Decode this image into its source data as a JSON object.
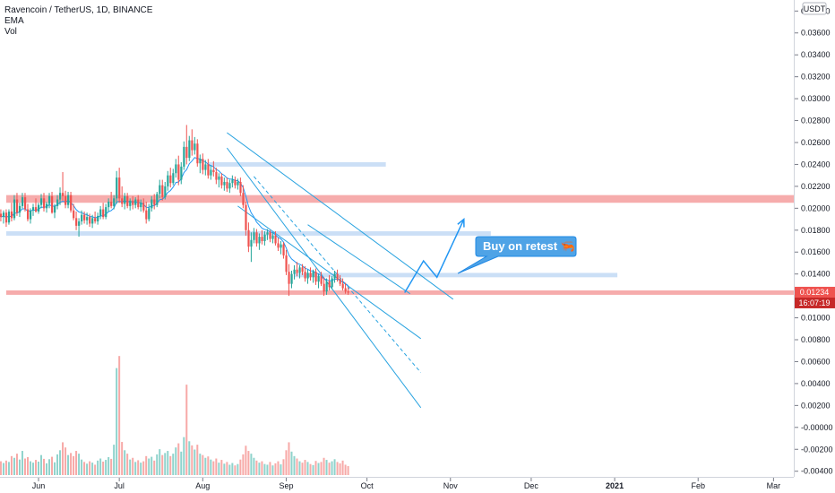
{
  "legend": {
    "title": "Ravencoin / TetherUS, 1D, BINANCE",
    "indicator_1": "EMA",
    "indicator_2": "Vol"
  },
  "currency_badge": "USDT",
  "current_price_tag": "0.01234",
  "countdown_tag": "16:07:19",
  "callout": {
    "text": "Buy on retest",
    "emoji": "🦐"
  },
  "colors": {
    "up": "#26a69a",
    "down": "#ef5350",
    "ema": "#2196f3",
    "zone_red": "#f5a3a3",
    "zone_blue": "#c2d9f5",
    "callout_bg": "#4fa3e6",
    "callout_border": "#1e88e5",
    "price_tag_bg": "#ef5350",
    "countdown_tag_bg": "#c62828",
    "axis_text": "#131722"
  },
  "chart_data": {
    "type": "candlestick",
    "symbol": "Ravencoin / TetherUS",
    "interval": "1D",
    "exchange": "BINANCE",
    "y_axis": {
      "ticks": [
        "0.03800",
        "0.03600",
        "0.03400",
        "0.03200",
        "0.03000",
        "0.02800",
        "0.02600",
        "0.02400",
        "0.02200",
        "0.02000",
        "0.01800",
        "0.01600",
        "0.01400",
        "0.01200",
        "0.01000",
        "0.00800",
        "0.00600",
        "0.00400",
        "0.00200",
        "-0.00000",
        "-0.00200",
        "-0.00400"
      ],
      "range": [
        -0.0043,
        0.0391
      ]
    },
    "x_axis": {
      "ticks": [
        {
          "label": "Jun",
          "day": 0
        },
        {
          "label": "Jul",
          "day": 30
        },
        {
          "label": "Aug",
          "day": 61
        },
        {
          "label": "Sep",
          "day": 92
        },
        {
          "label": "Oct",
          "day": 122
        },
        {
          "label": "Nov",
          "day": 153
        },
        {
          "label": "Dec",
          "day": 183
        },
        {
          "label": "2021",
          "day": 214
        },
        {
          "label": "Feb",
          "day": 245
        },
        {
          "label": "Mar",
          "day": 273
        }
      ]
    },
    "zones": [
      {
        "color": "red",
        "top": 0.0212,
        "bottom": 0.0205,
        "from_day": -12,
        "to_day": 284
      },
      {
        "color": "blue",
        "top": 0.0179,
        "bottom": 0.0175,
        "from_day": -12,
        "to_day": 168
      },
      {
        "color": "blue",
        "top": 0.0242,
        "bottom": 0.0238,
        "from_day": 63,
        "to_day": 129
      },
      {
        "color": "blue",
        "top": 0.0141,
        "bottom": 0.0137,
        "from_day": 95,
        "to_day": 215
      },
      {
        "color": "red",
        "top": 0.0125,
        "bottom": 0.0121,
        "from_day": -12,
        "to_day": 284
      }
    ],
    "trend_lines": [
      {
        "from": {
          "day": 70,
          "price": 0.0269
        },
        "to": {
          "day": 154,
          "price": 0.0117
        },
        "style": "solid"
      },
      {
        "from": {
          "day": 74,
          "price": 0.0202
        },
        "to": {
          "day": 142,
          "price": 0.0081
        },
        "style": "solid"
      },
      {
        "from": {
          "day": 80,
          "price": 0.0229
        },
        "to": {
          "day": 142,
          "price": 0.005
        },
        "style": "dashed"
      },
      {
        "from": {
          "day": 70,
          "price": 0.0255
        },
        "to": {
          "day": 142,
          "price": 0.0018
        },
        "style": "solid"
      },
      {
        "from": {
          "day": 100,
          "price": 0.0185
        },
        "to": {
          "day": 138,
          "price": 0.0122
        },
        "style": "solid"
      }
    ],
    "projection_path": [
      {
        "day": 136,
        "price": 0.0123
      },
      {
        "day": 143,
        "price": 0.0152
      },
      {
        "day": 148,
        "price": 0.0137
      },
      {
        "day": 158,
        "price": 0.019
      }
    ],
    "candles": [
      {
        "o": 0.0195,
        "h": 0.0199,
        "l": 0.0188,
        "c": 0.0192,
        "v": 40
      },
      {
        "o": 0.0192,
        "h": 0.0198,
        "l": 0.0186,
        "c": 0.0196,
        "v": 35
      },
      {
        "o": 0.0196,
        "h": 0.0199,
        "l": 0.0183,
        "c": 0.0187,
        "v": 42
      },
      {
        "o": 0.0187,
        "h": 0.0199,
        "l": 0.0185,
        "c": 0.0197,
        "v": 38
      },
      {
        "o": 0.0197,
        "h": 0.0205,
        "l": 0.0188,
        "c": 0.0191,
        "v": 55
      },
      {
        "o": 0.0191,
        "h": 0.0212,
        "l": 0.0189,
        "c": 0.0208,
        "v": 50
      },
      {
        "o": 0.0208,
        "h": 0.0214,
        "l": 0.0193,
        "c": 0.0196,
        "v": 62
      },
      {
        "o": 0.0196,
        "h": 0.0205,
        "l": 0.0192,
        "c": 0.0202,
        "v": 45
      },
      {
        "o": 0.0202,
        "h": 0.0214,
        "l": 0.02,
        "c": 0.021,
        "v": 70
      },
      {
        "o": 0.021,
        "h": 0.0214,
        "l": 0.0197,
        "c": 0.0199,
        "v": 48
      },
      {
        "o": 0.0199,
        "h": 0.0204,
        "l": 0.0188,
        "c": 0.019,
        "v": 52
      },
      {
        "o": 0.019,
        "h": 0.02,
        "l": 0.0186,
        "c": 0.0198,
        "v": 40
      },
      {
        "o": 0.0198,
        "h": 0.0204,
        "l": 0.0193,
        "c": 0.0201,
        "v": 36
      },
      {
        "o": 0.0201,
        "h": 0.0209,
        "l": 0.0196,
        "c": 0.0197,
        "v": 44
      },
      {
        "o": 0.0197,
        "h": 0.0205,
        "l": 0.0195,
        "c": 0.0203,
        "v": 39
      },
      {
        "o": 0.0203,
        "h": 0.0213,
        "l": 0.02,
        "c": 0.0209,
        "v": 58
      },
      {
        "o": 0.0209,
        "h": 0.0214,
        "l": 0.0197,
        "c": 0.02,
        "v": 47
      },
      {
        "o": 0.02,
        "h": 0.0206,
        "l": 0.0196,
        "c": 0.0204,
        "v": 34
      },
      {
        "o": 0.0204,
        "h": 0.0214,
        "l": 0.02,
        "c": 0.0211,
        "v": 46
      },
      {
        "o": 0.0211,
        "h": 0.0215,
        "l": 0.0195,
        "c": 0.0196,
        "v": 53
      },
      {
        "o": 0.0196,
        "h": 0.0204,
        "l": 0.0191,
        "c": 0.0202,
        "v": 37
      },
      {
        "o": 0.0202,
        "h": 0.0212,
        "l": 0.0199,
        "c": 0.0208,
        "v": 60
      },
      {
        "o": 0.0208,
        "h": 0.0219,
        "l": 0.0203,
        "c": 0.0214,
        "v": 72
      },
      {
        "o": 0.0214,
        "h": 0.0233,
        "l": 0.0207,
        "c": 0.0211,
        "v": 95
      },
      {
        "o": 0.0211,
        "h": 0.0216,
        "l": 0.02,
        "c": 0.0203,
        "v": 80
      },
      {
        "o": 0.0203,
        "h": 0.0215,
        "l": 0.02,
        "c": 0.0212,
        "v": 58
      },
      {
        "o": 0.0212,
        "h": 0.0215,
        "l": 0.0196,
        "c": 0.0198,
        "v": 64
      },
      {
        "o": 0.0198,
        "h": 0.0204,
        "l": 0.0189,
        "c": 0.0191,
        "v": 55
      },
      {
        "o": 0.0191,
        "h": 0.0197,
        "l": 0.018,
        "c": 0.0184,
        "v": 70
      },
      {
        "o": 0.0184,
        "h": 0.0191,
        "l": 0.0174,
        "c": 0.0188,
        "v": 62
      },
      {
        "o": 0.0188,
        "h": 0.0198,
        "l": 0.0185,
        "c": 0.0194,
        "v": 45
      },
      {
        "o": 0.0194,
        "h": 0.0197,
        "l": 0.0186,
        "c": 0.0189,
        "v": 38
      },
      {
        "o": 0.0189,
        "h": 0.0196,
        "l": 0.0185,
        "c": 0.0192,
        "v": 33
      },
      {
        "o": 0.0192,
        "h": 0.0195,
        "l": 0.0183,
        "c": 0.0186,
        "v": 40
      },
      {
        "o": 0.0186,
        "h": 0.0194,
        "l": 0.0182,
        "c": 0.0191,
        "v": 36
      },
      {
        "o": 0.0191,
        "h": 0.0197,
        "l": 0.0186,
        "c": 0.0188,
        "v": 30
      },
      {
        "o": 0.0188,
        "h": 0.0196,
        "l": 0.0185,
        "c": 0.0193,
        "v": 42
      },
      {
        "o": 0.0193,
        "h": 0.0202,
        "l": 0.019,
        "c": 0.0199,
        "v": 48
      },
      {
        "o": 0.0199,
        "h": 0.0205,
        "l": 0.019,
        "c": 0.0192,
        "v": 39
      },
      {
        "o": 0.0192,
        "h": 0.0204,
        "l": 0.019,
        "c": 0.0201,
        "v": 44
      },
      {
        "o": 0.0201,
        "h": 0.0209,
        "l": 0.0197,
        "c": 0.0206,
        "v": 52
      },
      {
        "o": 0.0206,
        "h": 0.0215,
        "l": 0.02,
        "c": 0.0202,
        "v": 47
      },
      {
        "o": 0.0202,
        "h": 0.0212,
        "l": 0.0199,
        "c": 0.0209,
        "v": 88
      },
      {
        "o": 0.0209,
        "h": 0.0234,
        "l": 0.0204,
        "c": 0.0228,
        "v": 310
      },
      {
        "o": 0.0228,
        "h": 0.0237,
        "l": 0.0205,
        "c": 0.0209,
        "v": 345
      },
      {
        "o": 0.0209,
        "h": 0.022,
        "l": 0.0201,
        "c": 0.0204,
        "v": 96
      },
      {
        "o": 0.0204,
        "h": 0.0214,
        "l": 0.0199,
        "c": 0.0211,
        "v": 72
      },
      {
        "o": 0.0211,
        "h": 0.0214,
        "l": 0.02,
        "c": 0.0202,
        "v": 62
      },
      {
        "o": 0.0202,
        "h": 0.0209,
        "l": 0.0198,
        "c": 0.0207,
        "v": 45
      },
      {
        "o": 0.0207,
        "h": 0.0211,
        "l": 0.0199,
        "c": 0.0203,
        "v": 50
      },
      {
        "o": 0.0203,
        "h": 0.021,
        "l": 0.02,
        "c": 0.0208,
        "v": 38
      },
      {
        "o": 0.0208,
        "h": 0.0212,
        "l": 0.0199,
        "c": 0.0201,
        "v": 43
      },
      {
        "o": 0.0201,
        "h": 0.0208,
        "l": 0.0197,
        "c": 0.0205,
        "v": 36
      },
      {
        "o": 0.0205,
        "h": 0.0209,
        "l": 0.0196,
        "c": 0.0198,
        "v": 40
      },
      {
        "o": 0.0198,
        "h": 0.0206,
        "l": 0.0186,
        "c": 0.019,
        "v": 55
      },
      {
        "o": 0.019,
        "h": 0.0204,
        "l": 0.0188,
        "c": 0.02,
        "v": 48
      },
      {
        "o": 0.02,
        "h": 0.0211,
        "l": 0.0197,
        "c": 0.0208,
        "v": 53
      },
      {
        "o": 0.0208,
        "h": 0.0213,
        "l": 0.0199,
        "c": 0.0203,
        "v": 42
      },
      {
        "o": 0.0203,
        "h": 0.0215,
        "l": 0.0201,
        "c": 0.0213,
        "v": 60
      },
      {
        "o": 0.0213,
        "h": 0.0226,
        "l": 0.0209,
        "c": 0.0221,
        "v": 75
      },
      {
        "o": 0.0221,
        "h": 0.0226,
        "l": 0.0207,
        "c": 0.021,
        "v": 58
      },
      {
        "o": 0.021,
        "h": 0.0224,
        "l": 0.0208,
        "c": 0.022,
        "v": 64
      },
      {
        "o": 0.022,
        "h": 0.0234,
        "l": 0.0216,
        "c": 0.023,
        "v": 70
      },
      {
        "o": 0.023,
        "h": 0.0237,
        "l": 0.0219,
        "c": 0.0223,
        "v": 55
      },
      {
        "o": 0.0223,
        "h": 0.0236,
        "l": 0.0221,
        "c": 0.0232,
        "v": 62
      },
      {
        "o": 0.0232,
        "h": 0.0245,
        "l": 0.0228,
        "c": 0.024,
        "v": 80
      },
      {
        "o": 0.024,
        "h": 0.0248,
        "l": 0.0221,
        "c": 0.0226,
        "v": 92
      },
      {
        "o": 0.0226,
        "h": 0.0242,
        "l": 0.0222,
        "c": 0.0238,
        "v": 68
      },
      {
        "o": 0.0238,
        "h": 0.0261,
        "l": 0.0235,
        "c": 0.0256,
        "v": 110
      },
      {
        "o": 0.0256,
        "h": 0.0276,
        "l": 0.024,
        "c": 0.0246,
        "v": 262
      },
      {
        "o": 0.0246,
        "h": 0.0266,
        "l": 0.0243,
        "c": 0.0262,
        "v": 98
      },
      {
        "o": 0.0262,
        "h": 0.0272,
        "l": 0.0248,
        "c": 0.0253,
        "v": 86
      },
      {
        "o": 0.0253,
        "h": 0.0265,
        "l": 0.0249,
        "c": 0.0259,
        "v": 74
      },
      {
        "o": 0.0259,
        "h": 0.0263,
        "l": 0.0238,
        "c": 0.0241,
        "v": 88
      },
      {
        "o": 0.0241,
        "h": 0.0249,
        "l": 0.0232,
        "c": 0.0245,
        "v": 62
      },
      {
        "o": 0.0245,
        "h": 0.025,
        "l": 0.0231,
        "c": 0.0235,
        "v": 58
      },
      {
        "o": 0.0235,
        "h": 0.0244,
        "l": 0.023,
        "c": 0.024,
        "v": 50
      },
      {
        "o": 0.024,
        "h": 0.0245,
        "l": 0.0227,
        "c": 0.023,
        "v": 54
      },
      {
        "o": 0.023,
        "h": 0.0239,
        "l": 0.0226,
        "c": 0.0235,
        "v": 45
      },
      {
        "o": 0.0235,
        "h": 0.0243,
        "l": 0.0229,
        "c": 0.0233,
        "v": 40
      },
      {
        "o": 0.0233,
        "h": 0.0237,
        "l": 0.0222,
        "c": 0.0226,
        "v": 48
      },
      {
        "o": 0.0226,
        "h": 0.0232,
        "l": 0.0219,
        "c": 0.0229,
        "v": 36
      },
      {
        "o": 0.0229,
        "h": 0.0232,
        "l": 0.0218,
        "c": 0.0221,
        "v": 44
      },
      {
        "o": 0.0221,
        "h": 0.0228,
        "l": 0.0216,
        "c": 0.0224,
        "v": 33
      },
      {
        "o": 0.0224,
        "h": 0.0228,
        "l": 0.0215,
        "c": 0.0218,
        "v": 38
      },
      {
        "o": 0.0218,
        "h": 0.0226,
        "l": 0.0214,
        "c": 0.0223,
        "v": 30
      },
      {
        "o": 0.0223,
        "h": 0.023,
        "l": 0.0219,
        "c": 0.0226,
        "v": 35
      },
      {
        "o": 0.0226,
        "h": 0.0229,
        "l": 0.0218,
        "c": 0.0221,
        "v": 28
      },
      {
        "o": 0.0221,
        "h": 0.0227,
        "l": 0.0217,
        "c": 0.0224,
        "v": 32
      },
      {
        "o": 0.0224,
        "h": 0.0228,
        "l": 0.0211,
        "c": 0.0214,
        "v": 45
      },
      {
        "o": 0.0214,
        "h": 0.0221,
        "l": 0.02,
        "c": 0.0203,
        "v": 60
      },
      {
        "o": 0.0203,
        "h": 0.0206,
        "l": 0.0175,
        "c": 0.018,
        "v": 85
      },
      {
        "o": 0.018,
        "h": 0.0187,
        "l": 0.016,
        "c": 0.0165,
        "v": 70
      },
      {
        "o": 0.0165,
        "h": 0.0178,
        "l": 0.0151,
        "c": 0.0171,
        "v": 62
      },
      {
        "o": 0.0171,
        "h": 0.0182,
        "l": 0.0168,
        "c": 0.0178,
        "v": 50
      },
      {
        "o": 0.0178,
        "h": 0.0181,
        "l": 0.0165,
        "c": 0.0168,
        "v": 42
      },
      {
        "o": 0.0168,
        "h": 0.0177,
        "l": 0.0162,
        "c": 0.0174,
        "v": 36
      },
      {
        "o": 0.0174,
        "h": 0.018,
        "l": 0.0167,
        "c": 0.017,
        "v": 40
      },
      {
        "o": 0.017,
        "h": 0.0179,
        "l": 0.0166,
        "c": 0.0176,
        "v": 32
      },
      {
        "o": 0.0176,
        "h": 0.0181,
        "l": 0.0171,
        "c": 0.0178,
        "v": 30
      },
      {
        "o": 0.0178,
        "h": 0.018,
        "l": 0.0169,
        "c": 0.0172,
        "v": 38
      },
      {
        "o": 0.0172,
        "h": 0.0178,
        "l": 0.0168,
        "c": 0.0175,
        "v": 28
      },
      {
        "o": 0.0175,
        "h": 0.0179,
        "l": 0.0166,
        "c": 0.0168,
        "v": 34
      },
      {
        "o": 0.0168,
        "h": 0.0173,
        "l": 0.0161,
        "c": 0.0164,
        "v": 40
      },
      {
        "o": 0.0164,
        "h": 0.017,
        "l": 0.0158,
        "c": 0.0167,
        "v": 31
      },
      {
        "o": 0.0167,
        "h": 0.0169,
        "l": 0.0154,
        "c": 0.0157,
        "v": 46
      },
      {
        "o": 0.0157,
        "h": 0.0162,
        "l": 0.0139,
        "c": 0.0142,
        "v": 72
      },
      {
        "o": 0.0142,
        "h": 0.0149,
        "l": 0.012,
        "c": 0.0131,
        "v": 95
      },
      {
        "o": 0.0131,
        "h": 0.0143,
        "l": 0.0127,
        "c": 0.014,
        "v": 68
      },
      {
        "o": 0.014,
        "h": 0.0148,
        "l": 0.0135,
        "c": 0.0144,
        "v": 55
      },
      {
        "o": 0.0144,
        "h": 0.0151,
        "l": 0.0138,
        "c": 0.0141,
        "v": 48
      },
      {
        "o": 0.0141,
        "h": 0.0148,
        "l": 0.0136,
        "c": 0.0146,
        "v": 40
      },
      {
        "o": 0.0146,
        "h": 0.0149,
        "l": 0.0139,
        "c": 0.0142,
        "v": 36
      },
      {
        "o": 0.0142,
        "h": 0.0147,
        "l": 0.0133,
        "c": 0.0136,
        "v": 44
      },
      {
        "o": 0.0136,
        "h": 0.0144,
        "l": 0.0131,
        "c": 0.0141,
        "v": 38
      },
      {
        "o": 0.0141,
        "h": 0.0146,
        "l": 0.0134,
        "c": 0.0137,
        "v": 32
      },
      {
        "o": 0.0137,
        "h": 0.0144,
        "l": 0.0132,
        "c": 0.0142,
        "v": 29
      },
      {
        "o": 0.0142,
        "h": 0.0145,
        "l": 0.013,
        "c": 0.0133,
        "v": 41
      },
      {
        "o": 0.0133,
        "h": 0.014,
        "l": 0.0127,
        "c": 0.0138,
        "v": 35
      },
      {
        "o": 0.0138,
        "h": 0.0142,
        "l": 0.0129,
        "c": 0.0131,
        "v": 38
      },
      {
        "o": 0.0131,
        "h": 0.0137,
        "l": 0.012,
        "c": 0.0124,
        "v": 50
      },
      {
        "o": 0.0124,
        "h": 0.0136,
        "l": 0.0121,
        "c": 0.0133,
        "v": 44
      },
      {
        "o": 0.0133,
        "h": 0.0139,
        "l": 0.0125,
        "c": 0.0128,
        "v": 36
      },
      {
        "o": 0.0128,
        "h": 0.0138,
        "l": 0.0126,
        "c": 0.0136,
        "v": 40
      },
      {
        "o": 0.0136,
        "h": 0.0143,
        "l": 0.0132,
        "c": 0.014,
        "v": 46
      },
      {
        "o": 0.014,
        "h": 0.0144,
        "l": 0.0133,
        "c": 0.0135,
        "v": 38
      },
      {
        "o": 0.0135,
        "h": 0.0139,
        "l": 0.0129,
        "c": 0.0131,
        "v": 34
      },
      {
        "o": 0.0131,
        "h": 0.0136,
        "l": 0.0125,
        "c": 0.0127,
        "v": 42
      },
      {
        "o": 0.0127,
        "h": 0.0132,
        "l": 0.0122,
        "c": 0.0124,
        "v": 30
      },
      {
        "o": 0.0124,
        "h": 0.0128,
        "l": 0.0121,
        "c": 0.0123,
        "v": 26
      }
    ]
  }
}
